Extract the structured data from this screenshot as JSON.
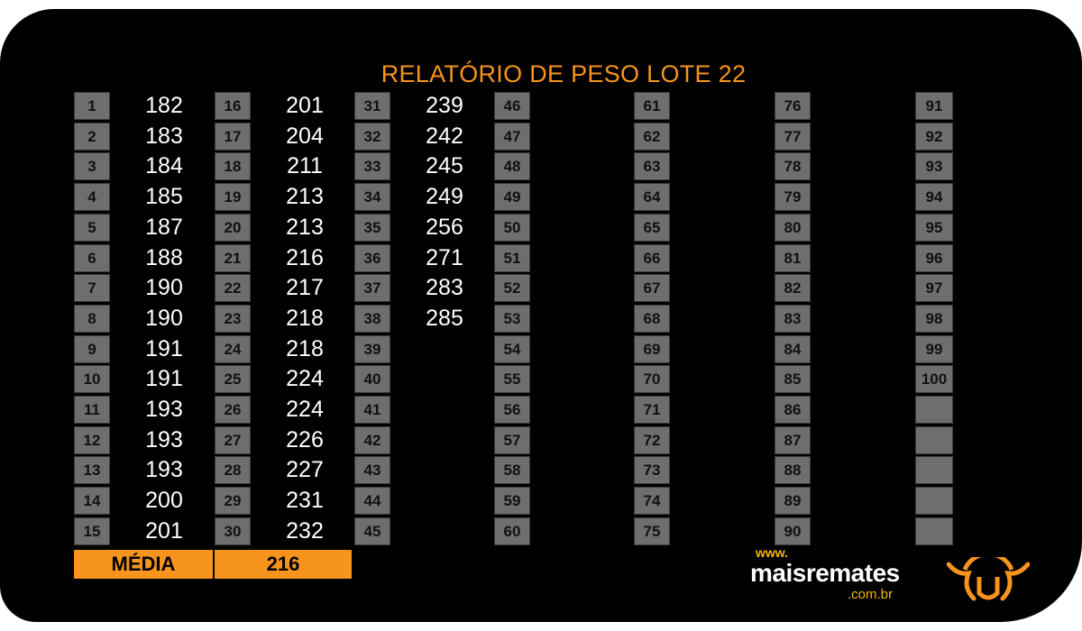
{
  "title": "RELATÓRIO DE PESO LOTE 22",
  "columns": [
    {
      "numbers": [
        "1",
        "2",
        "3",
        "4",
        "5",
        "6",
        "7",
        "8",
        "9",
        "10",
        "11",
        "12",
        "13",
        "14",
        "15"
      ],
      "weights": [
        "182",
        "183",
        "184",
        "185",
        "187",
        "188",
        "190",
        "190",
        "191",
        "191",
        "193",
        "193",
        "193",
        "200",
        "201"
      ]
    },
    {
      "numbers": [
        "16",
        "17",
        "18",
        "19",
        "20",
        "21",
        "22",
        "23",
        "24",
        "25",
        "26",
        "27",
        "28",
        "29",
        "30"
      ],
      "weights": [
        "201",
        "204",
        "211",
        "213",
        "213",
        "216",
        "217",
        "218",
        "218",
        "224",
        "224",
        "226",
        "227",
        "231",
        "232"
      ]
    },
    {
      "numbers": [
        "31",
        "32",
        "33",
        "34",
        "35",
        "36",
        "37",
        "38",
        "39",
        "40",
        "41",
        "42",
        "43",
        "44",
        "45"
      ],
      "weights": [
        "239",
        "242",
        "245",
        "249",
        "256",
        "271",
        "283",
        "285",
        "",
        "",
        "",
        "",
        "",
        "",
        ""
      ]
    },
    {
      "numbers": [
        "46",
        "47",
        "48",
        "49",
        "50",
        "51",
        "52",
        "53",
        "54",
        "55",
        "56",
        "57",
        "58",
        "59",
        "60"
      ],
      "weights": []
    },
    {
      "numbers": [
        "61",
        "62",
        "63",
        "64",
        "65",
        "66",
        "67",
        "68",
        "69",
        "70",
        "71",
        "72",
        "73",
        "74",
        "75"
      ],
      "weights": []
    },
    {
      "numbers": [
        "76",
        "77",
        "78",
        "79",
        "80",
        "81",
        "82",
        "83",
        "84",
        "85",
        "86",
        "87",
        "88",
        "89",
        "90"
      ],
      "weights": []
    },
    {
      "numbers": [
        "91",
        "92",
        "93",
        "94",
        "95",
        "96",
        "97",
        "98",
        "99",
        "100",
        "",
        "",
        "",
        "",
        ""
      ],
      "weights": []
    }
  ],
  "average": {
    "label": "MÉDIA",
    "value": "216"
  },
  "brand": {
    "www": "www.",
    "name": "maisremates",
    "domain": ".com.br",
    "logo_icon": "bull-head-icon"
  },
  "colors": {
    "accent": "#f7941d",
    "box": "#6e6e6e",
    "background": "#000000"
  }
}
